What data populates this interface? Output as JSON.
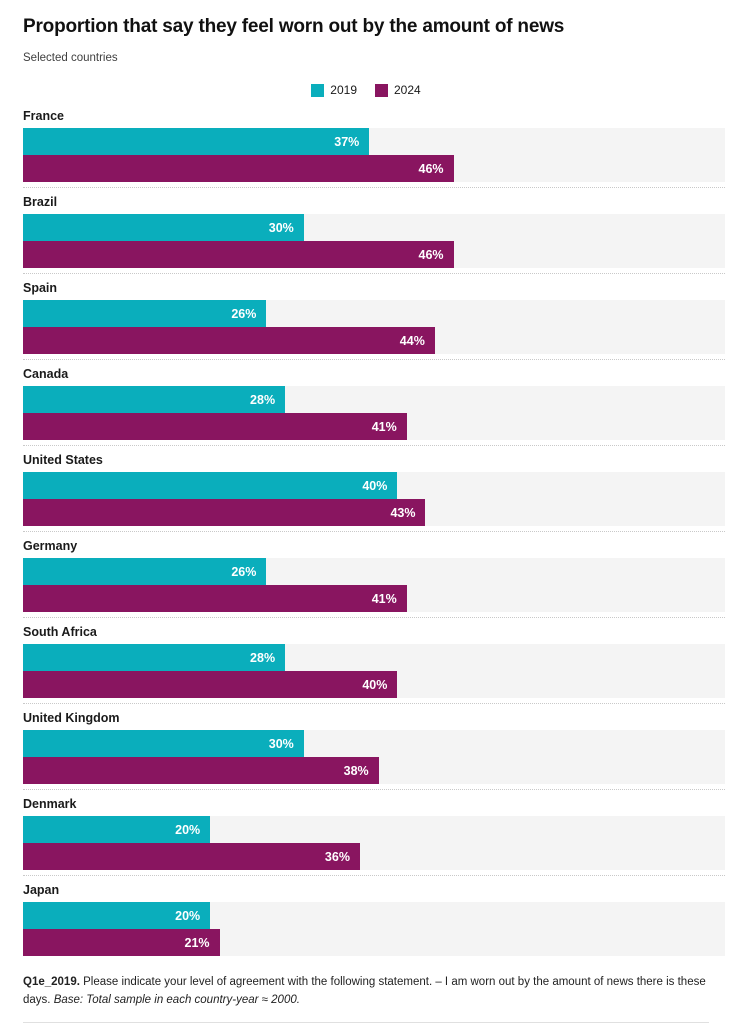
{
  "title": "Proportion that say they feel worn out by the amount of news",
  "subtitle": "Selected countries",
  "legend": [
    {
      "label": "2019",
      "color": "#0aaebc"
    },
    {
      "label": "2024",
      "color": "#891560"
    }
  ],
  "chart_data": {
    "type": "bar",
    "orientation": "horizontal",
    "title": "Proportion that say they feel worn out by the amount of news",
    "subtitle": "Selected countries",
    "categories": [
      "France",
      "Brazil",
      "Spain",
      "Canada",
      "United States",
      "Germany",
      "South Africa",
      "United Kingdom",
      "Denmark",
      "Japan"
    ],
    "series": [
      {
        "name": "2019",
        "color": "#0aaebc",
        "values": [
          37,
          30,
          26,
          28,
          40,
          26,
          28,
          30,
          20,
          20
        ]
      },
      {
        "name": "2024",
        "color": "#891560",
        "values": [
          46,
          46,
          44,
          41,
          43,
          41,
          40,
          38,
          36,
          21
        ]
      }
    ],
    "value_suffix": "%",
    "xlim": [
      0,
      75
    ],
    "grid": false,
    "legend_position": "top-center",
    "track_color": "#f4f4f4",
    "value_labels": "inside-end, white bold"
  },
  "footnote": {
    "code": "Q1e_2019.",
    "text": " Please indicate your level of agreement with the following statement. – I am worn out by the amount of news there is these days. ",
    "base": "Base: Total sample in each country-year ≈ 2000."
  }
}
